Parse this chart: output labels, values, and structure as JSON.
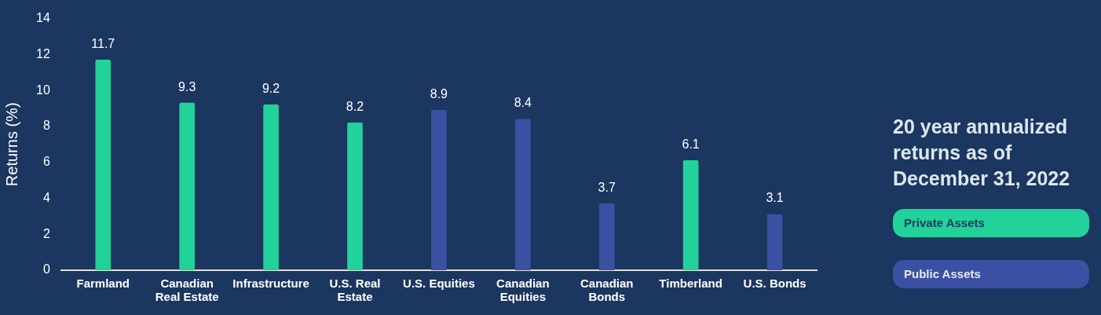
{
  "chart_data": {
    "type": "bar",
    "title": "20 year annualized returns as of December 31, 2022",
    "ylabel": "Returns (%)",
    "categories": [
      "Farmland",
      "Canadian Real Estate",
      "Infrastructure",
      "U.S. Real Estate",
      "U.S. Equities",
      "Canadian Equities",
      "Canadian Bonds",
      "Timberland",
      "U.S. Bonds"
    ],
    "series": [
      {
        "name": "Private Assets",
        "color": "#21d29b",
        "values": [
          11.7,
          9.3,
          9.2,
          8.2,
          null,
          null,
          null,
          6.1,
          null
        ]
      },
      {
        "name": "Public Assets",
        "color": "#3a51a3",
        "values": [
          null,
          null,
          null,
          null,
          8.9,
          8.4,
          3.7,
          null,
          3.1
        ]
      }
    ],
    "ylim": [
      0,
      14
    ],
    "yticks": [
      0,
      2,
      4,
      6,
      8,
      10,
      12,
      14
    ],
    "grid": false,
    "legend": "right",
    "data_labels": true
  }
}
